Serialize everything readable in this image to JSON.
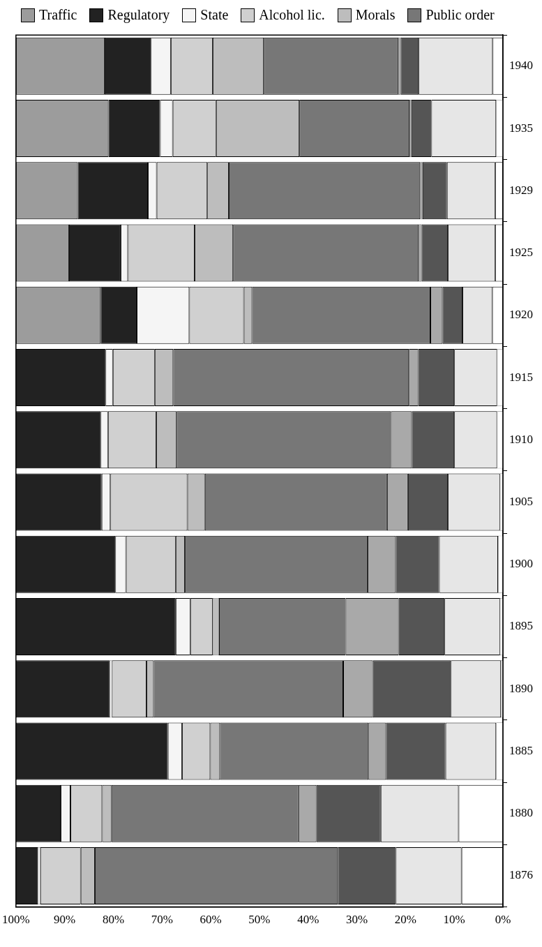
{
  "chart_data": {
    "type": "bar",
    "orientation": "horizontal",
    "stacked": true,
    "grid": false,
    "legend": "top left",
    "categories": [
      "1940",
      "1935",
      "1929",
      "1925",
      "1920",
      "1915",
      "1910",
      "1905",
      "1900",
      "1895",
      "1890",
      "1885",
      "1880",
      "1876"
    ],
    "xlim": [
      100,
      0
    ],
    "xticks": [
      {
        "value": 100,
        "label": "100%"
      },
      {
        "value": 90,
        "label": "90%"
      },
      {
        "value": 80,
        "label": "80%"
      },
      {
        "value": 70,
        "label": "70%"
      },
      {
        "value": 60,
        "label": "60%"
      },
      {
        "value": 50,
        "label": "50%"
      },
      {
        "value": 40,
        "label": "40%"
      },
      {
        "value": 30,
        "label": "30%"
      },
      {
        "value": 20,
        "label": "20%"
      },
      {
        "value": 10,
        "label": "10%"
      },
      {
        "value": 0,
        "label": "0%"
      }
    ],
    "series": [
      {
        "color": "#ffffff",
        "values": [
          2.1,
          1.4,
          1.6,
          1.6,
          2.2,
          1.2,
          1.2,
          0.6,
          1.0,
          0.6,
          0.4,
          1.4,
          9.1,
          8.5
        ]
      },
      {
        "color": "#e6e6e6",
        "values": [
          15.2,
          13.3,
          9.9,
          9.7,
          6.1,
          8.8,
          8.8,
          10.7,
          12.1,
          11.4,
          10.3,
          10.4,
          16.0,
          13.5
        ]
      },
      {
        "color": "#555555",
        "values": [
          3.7,
          4.1,
          5.0,
          5.4,
          4.1,
          7.4,
          8.7,
          8.2,
          8.9,
          9.4,
          16.0,
          12.2,
          13.2,
          11.9
        ]
      },
      {
        "color": "#a9a9a9",
        "values": [
          0.5,
          0.4,
          0.5,
          0.6,
          2.5,
          1.9,
          4.3,
          4.3,
          5.8,
          10.9,
          6.1,
          3.6,
          3.7,
          0
        ]
      },
      {
        "name": "Public order",
        "color": "#777777",
        "values": [
          27.6,
          22.6,
          39.3,
          38.1,
          36.6,
          48.4,
          44.0,
          37.4,
          37.5,
          26.0,
          38.9,
          30.5,
          38.4,
          49.9
        ]
      },
      {
        "name": "Morals",
        "color": "#bdbdbd",
        "values": [
          10.5,
          17.1,
          4.4,
          7.9,
          1.7,
          3.8,
          4.2,
          3.6,
          1.9,
          1.3,
          1.5,
          2.0,
          1.9,
          2.9
        ]
      },
      {
        "name": "Alcohol lic.",
        "color": "#d0d0d0",
        "values": [
          8.6,
          8.9,
          10.4,
          13.7,
          11.2,
          8.6,
          9.9,
          15.8,
          10.2,
          4.6,
          7.1,
          5.8,
          6.5,
          8.3
        ]
      },
      {
        "name": "State",
        "color": "#f5f5f5",
        "values": [
          4.1,
          2.6,
          1.8,
          1.5,
          10.8,
          1.5,
          1.5,
          1.8,
          2.2,
          3.0,
          0.4,
          2.9,
          2.0,
          0.5
        ]
      },
      {
        "name": "Regulatory",
        "color": "#222222",
        "values": [
          9.5,
          10.6,
          14.4,
          10.6,
          7.4,
          18.4,
          17.4,
          17.6,
          20.4,
          32.8,
          19.3,
          31.2,
          9.2,
          4.5
        ]
      },
      {
        "name": "Traffic",
        "color": "#9c9c9c",
        "values": [
          18.2,
          19.0,
          12.7,
          10.9,
          17.4,
          0,
          0,
          0,
          0,
          0,
          0,
          0,
          0,
          0
        ]
      }
    ]
  }
}
